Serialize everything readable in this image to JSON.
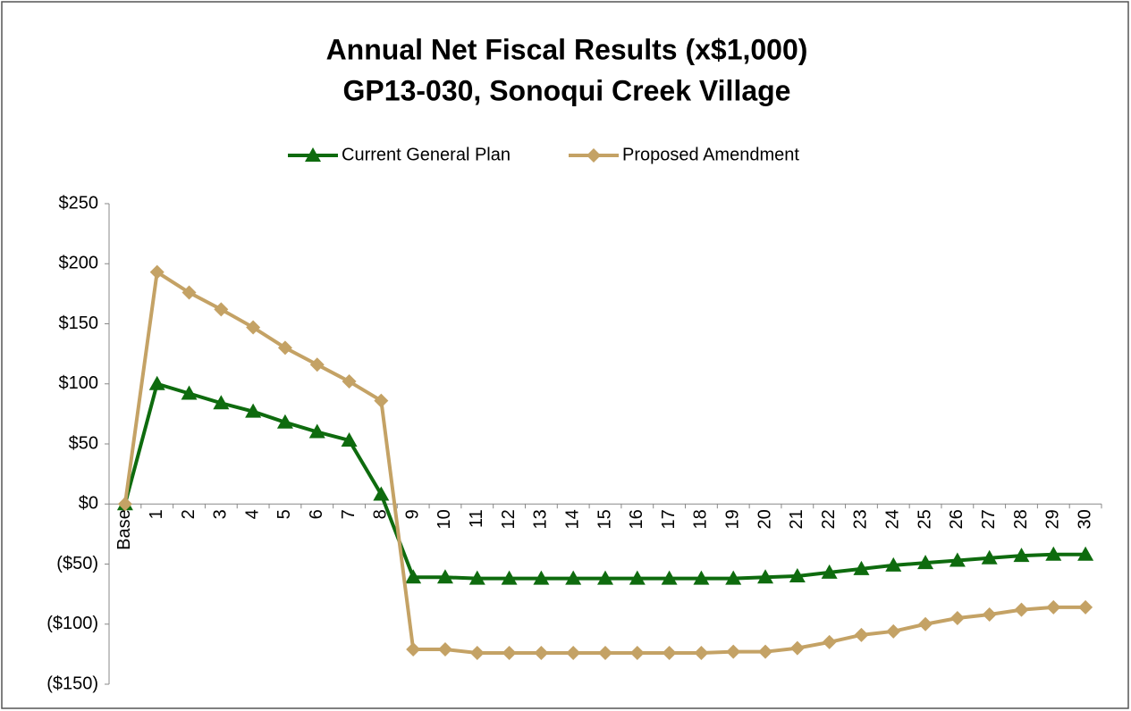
{
  "chart_data": {
    "type": "line",
    "title": [
      "Annual Net Fiscal Results (x$1,000)",
      "GP13-030, Sonoqui Creek Village"
    ],
    "categories": [
      "Base",
      "1",
      "2",
      "3",
      "4",
      "5",
      "6",
      "7",
      "8",
      "9",
      "10",
      "11",
      "12",
      "13",
      "14",
      "15",
      "16",
      "17",
      "18",
      "19",
      "20",
      "21",
      "22",
      "23",
      "24",
      "25",
      "26",
      "27",
      "28",
      "29",
      "30"
    ],
    "series": [
      {
        "name": "Current General Plan",
        "color": "#0e6b0e",
        "marker": "triangle",
        "values": [
          0,
          100,
          92,
          84,
          77,
          68,
          60,
          53,
          8,
          -61,
          -61,
          -62,
          -62,
          -62,
          -62,
          -62,
          -62,
          -62,
          -62,
          -62,
          -61,
          -60,
          -57,
          -54,
          -51,
          -49,
          -47,
          -45,
          -43,
          -42,
          -42
        ]
      },
      {
        "name": "Proposed Amendment",
        "color": "#c4a265",
        "marker": "diamond",
        "values": [
          0,
          193,
          176,
          162,
          147,
          130,
          116,
          102,
          86,
          -121,
          -121,
          -124,
          -124,
          -124,
          -124,
          -124,
          -124,
          -124,
          -124,
          -123,
          -123,
          -120,
          -115,
          -109,
          -106,
          -100,
          -95,
          -92,
          -88,
          -86,
          -86
        ]
      }
    ],
    "ylim": [
      -150,
      250
    ],
    "yticks": [
      {
        "value": -150,
        "label": "($150)"
      },
      {
        "value": -100,
        "label": "($100)"
      },
      {
        "value": -50,
        "label": "($50)"
      },
      {
        "value": 0,
        "label": "$0"
      },
      {
        "value": 50,
        "label": "$50"
      },
      {
        "value": 100,
        "label": "$100"
      },
      {
        "value": 150,
        "label": "$150"
      },
      {
        "value": 200,
        "label": "$200"
      },
      {
        "value": 250,
        "label": "$250"
      }
    ],
    "negative_tick_color": "#ff0000",
    "legend": "top",
    "grid": false
  }
}
